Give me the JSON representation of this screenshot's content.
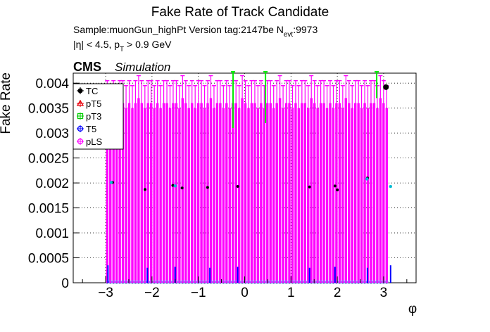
{
  "chart_data": {
    "type": "scatter",
    "title": "Fake Rate of Track Candidate",
    "subtitle": {
      "sample": "Sample:muonGun_highPt   Version tag:2147be  N",
      "nevt_sub": "evt",
      "nevt_val": ":9973",
      "cuts_pre": "|η| < 4.5, p",
      "cuts_sub": "T",
      "cuts_post": " > 0.9 GeV"
    },
    "cms_label": "CMS",
    "sim_label": "Simulation",
    "xlabel": "φ",
    "ylabel": "Fake Rate",
    "xlim": [
      -3.7,
      3.7
    ],
    "ylim": [
      0,
      0.0042
    ],
    "x_ticks": [
      -3,
      -2,
      -1,
      0,
      1,
      2,
      3
    ],
    "y_ticks": [
      0,
      0.0005,
      0.001,
      0.0015,
      0.002,
      0.0025,
      0.003,
      0.0035,
      0.004
    ],
    "y_tick_labels": [
      "0",
      "0.0005",
      "0.001",
      "0.0015",
      "0.002",
      "0.0025",
      "0.003",
      "0.0035",
      "0.004"
    ],
    "grid": true,
    "legend_position": "top-left",
    "legend": [
      {
        "name": "TC",
        "marker": "filled-circle",
        "color": "#000000"
      },
      {
        "name": "pT5",
        "marker": "open-triangle",
        "color": "#e8000b"
      },
      {
        "name": "pT3",
        "marker": "open-square",
        "color": "#00cc00"
      },
      {
        "name": "T5",
        "marker": "open-circle",
        "color": "#0000ff"
      },
      {
        "name": "pLS",
        "marker": "open-circle",
        "color": "#ff00ff"
      }
    ],
    "pLS": {
      "x_range": [
        -3.0,
        3.1
      ],
      "bins": 90,
      "values": [
        0.0036,
        0.0035,
        0.0036,
        0.0035,
        0.0036,
        0.0036,
        0.0035,
        0.0036,
        0.0035,
        0.0036,
        0.0037,
        0.0036,
        0.0035,
        0.0036,
        0.0036,
        0.0035,
        0.0036,
        0.0035,
        0.0036,
        0.0036,
        0.0035,
        0.0036,
        0.0036,
        0.0035,
        0.0037,
        0.0036,
        0.0035,
        0.0036,
        0.0035,
        0.0036,
        0.0036,
        0.0035,
        0.0036,
        0.0037,
        0.0035,
        0.0036,
        0.0036,
        0.0035,
        0.0036,
        0.0035,
        0.0036,
        0.0036,
        0.0035,
        0.0037,
        0.0036,
        0.0035,
        0.0036,
        0.0036,
        0.0035,
        0.0036,
        0.0035,
        0.0036,
        0.0036,
        0.0035,
        0.0036,
        0.0037,
        0.0035,
        0.0036,
        0.0036,
        0.0035,
        0.0036,
        0.0035,
        0.0036,
        0.0036,
        0.0035,
        0.0037,
        0.0036,
        0.0035,
        0.0036,
        0.0036,
        0.0035,
        0.0036,
        0.0035,
        0.0036,
        0.0036,
        0.0035,
        0.0037,
        0.0036,
        0.0035,
        0.0036,
        0.0036,
        0.0035,
        0.0036,
        0.0035,
        0.0036,
        0.0036,
        0.0035,
        0.0037,
        0.0036,
        0.0035
      ],
      "error_up": 0.00045
    },
    "pT3": {
      "points": [
        {
          "x": -0.25,
          "y": 0.0031
        },
        {
          "x": 0.45,
          "y": 0.0032
        },
        {
          "x": 2.85,
          "y": 0.0037
        }
      ],
      "error_up": 0.0012
    },
    "TC": {
      "points": [
        {
          "x": -2.85,
          "y": 0.00201
        },
        {
          "x": -2.15,
          "y": 0.00187
        },
        {
          "x": -1.55,
          "y": 0.00195
        },
        {
          "x": -1.35,
          "y": 0.0019
        },
        {
          "x": -0.8,
          "y": 0.00191
        },
        {
          "x": -0.15,
          "y": 0.00193
        },
        {
          "x": 1.4,
          "y": 0.00192
        },
        {
          "x": 1.95,
          "y": 0.00194
        },
        {
          "x": 2.0,
          "y": 0.00186
        },
        {
          "x": 2.65,
          "y": 0.0021
        },
        {
          "x": 3.05,
          "y": 0.00392
        }
      ]
    },
    "T5": {
      "bars": [
        {
          "x": -2.95,
          "y": 0.00035
        },
        {
          "x": -2.1,
          "y": 0.0003
        },
        {
          "x": -1.5,
          "y": 0.00032
        },
        {
          "x": -0.75,
          "y": 0.0003
        },
        {
          "x": -0.15,
          "y": 0.00032
        },
        {
          "x": 1.4,
          "y": 0.0003
        },
        {
          "x": 1.95,
          "y": 0.00032
        },
        {
          "x": 2.65,
          "y": 0.0003
        },
        {
          "x": 3.15,
          "y": 0.00035
        }
      ]
    },
    "cyan_points": [
      {
        "x": -2.88,
        "y": 0.00201
      },
      {
        "x": -1.5,
        "y": 0.00194
      },
      {
        "x": 2.64,
        "y": 0.00208
      },
      {
        "x": 3.15,
        "y": 0.00193
      }
    ]
  }
}
